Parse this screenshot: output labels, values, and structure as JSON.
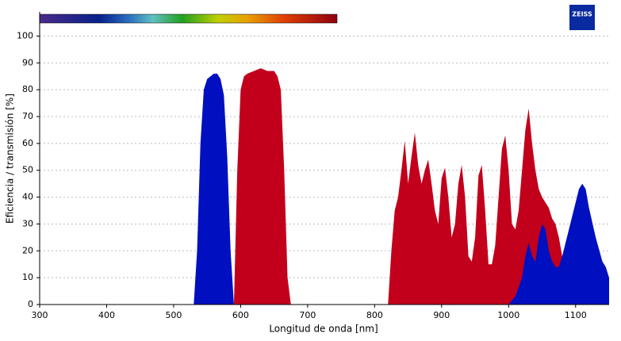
{
  "logo": "ZEISS",
  "chart_data": {
    "type": "area",
    "xlabel": "Longitud de onda [nm]",
    "ylabel": "Eficiencia / transmisión [%]",
    "xlim": [
      300,
      1150
    ],
    "xticks": [
      300,
      400,
      500,
      600,
      700,
      800,
      900,
      1000,
      1100
    ],
    "ylim": [
      0,
      109
    ],
    "yticks": [
      0,
      10,
      20,
      30,
      40,
      50,
      60,
      70,
      80,
      90,
      100
    ],
    "grid": true,
    "series": [
      {
        "color": "#c2001c",
        "x": [
          590,
          595,
          600,
          605,
          610,
          620,
          630,
          640,
          650,
          655,
          660,
          665,
          670,
          675,
          820,
          825,
          830,
          835,
          840,
          845,
          850,
          855,
          860,
          865,
          870,
          875,
          880,
          885,
          890,
          895,
          900,
          905,
          910,
          915,
          920,
          925,
          930,
          935,
          940,
          945,
          950,
          955,
          960,
          965,
          970,
          975,
          980,
          985,
          990,
          995,
          1000,
          1005,
          1010,
          1015,
          1020,
          1025,
          1030,
          1035,
          1040,
          1045,
          1050,
          1055,
          1060,
          1065,
          1070,
          1075,
          1080,
          1085
        ],
        "values": [
          0,
          50,
          80,
          85,
          86,
          87,
          88,
          87,
          87,
          85,
          80,
          50,
          10,
          0,
          0,
          20,
          35,
          40,
          50,
          61,
          45,
          55,
          64,
          52,
          45,
          50,
          54,
          45,
          35,
          30,
          47,
          51,
          40,
          25,
          30,
          45,
          52,
          40,
          18,
          16,
          25,
          48,
          52,
          35,
          15,
          15,
          22,
          40,
          58,
          63,
          50,
          30,
          28,
          35,
          50,
          65,
          73,
          60,
          50,
          43,
          40,
          38,
          36,
          32,
          30,
          25,
          18,
          0
        ]
      },
      {
        "color": "#0010c0",
        "x": [
          530,
          535,
          540,
          545,
          550,
          555,
          560,
          565,
          570,
          575,
          580,
          585,
          590,
          1000,
          1010,
          1020,
          1025,
          1030,
          1035,
          1040,
          1045,
          1050,
          1055,
          1060,
          1065,
          1070,
          1075,
          1080,
          1090,
          1100,
          1105,
          1110,
          1115,
          1120,
          1130,
          1140,
          1145,
          1150
        ],
        "values": [
          0,
          20,
          60,
          80,
          84,
          85,
          86,
          86,
          84,
          78,
          55,
          20,
          0,
          0,
          3,
          10,
          18,
          23,
          18,
          16,
          25,
          30,
          28,
          20,
          16,
          14,
          14,
          18,
          28,
          38,
          43,
          45,
          43,
          36,
          25,
          16,
          14,
          10
        ]
      }
    ]
  }
}
